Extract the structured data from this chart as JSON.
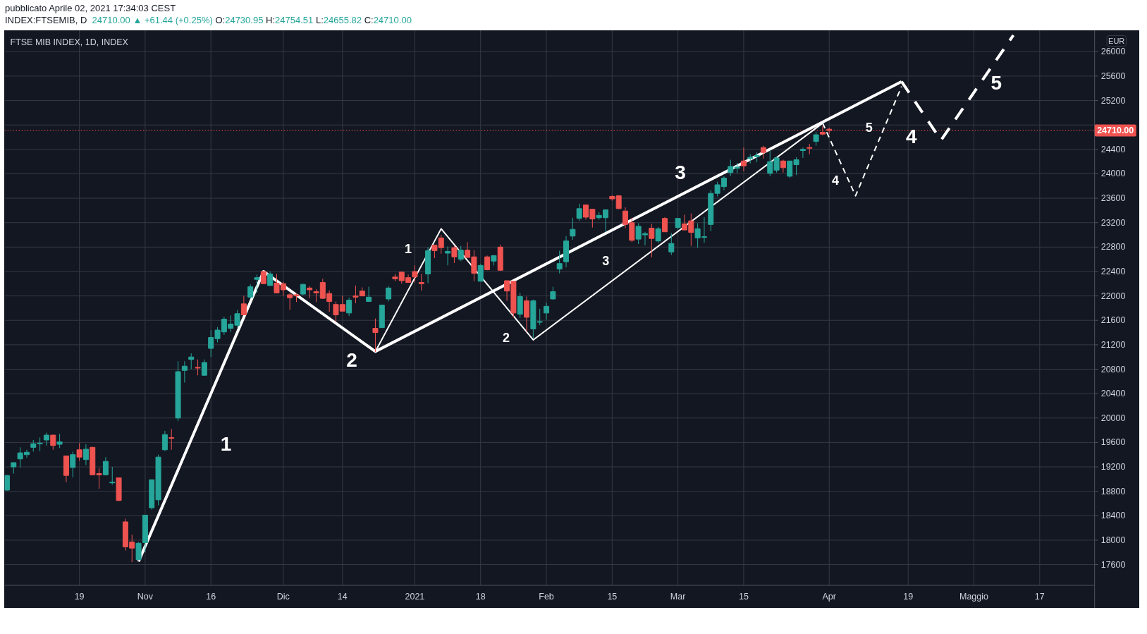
{
  "chart_data": {
    "type": "candlestick",
    "title": "FTSE MIB INDEX, 1D, INDEX",
    "subtitle": "INDEX:FTSEMIB, D  24710.00 ▲ +61.44 (+0.25%) O:24730.95 H:24754.51 L:24655.82 C:24710.00",
    "ylabel": "EUR",
    "annotations": [
      "pubblicato Aprile 02, 2021 17:34:03 CEST",
      "1",
      "2",
      "3",
      "4",
      "5",
      "1",
      "2",
      "3",
      "4",
      "5"
    ],
    "categories": [
      null,
      null,
      null,
      null,
      null,
      null,
      null,
      null,
      null,
      null,
      null,
      "19",
      null,
      null,
      null,
      null,
      null,
      null,
      null,
      null,
      null,
      "Nov",
      null,
      null,
      null,
      null,
      null,
      null,
      null,
      null,
      null,
      "16",
      null,
      null,
      null,
      null,
      null,
      null,
      null,
      null,
      null,
      null,
      "Dic",
      null,
      null,
      null,
      null,
      null,
      null,
      null,
      null,
      "14",
      null,
      null,
      null,
      null,
      null,
      null,
      null,
      null,
      null,
      null,
      "2021",
      null,
      null,
      null,
      null,
      null,
      null,
      null,
      null,
      null,
      "18",
      null,
      null,
      null,
      null,
      null,
      null,
      null,
      null,
      null,
      "Feb",
      null,
      null,
      null,
      null,
      null,
      null,
      null,
      null,
      null,
      "15",
      null,
      null,
      null,
      null,
      null,
      null,
      null,
      null,
      null,
      "Mar",
      null,
      null,
      null,
      null,
      null,
      null,
      null,
      null,
      null,
      "15",
      null,
      null,
      null,
      null,
      null,
      null,
      null,
      null,
      null,
      null,
      null,
      null,
      "Apr",
      null,
      null,
      null,
      null,
      null,
      null,
      null,
      null,
      null,
      null,
      null,
      "19",
      null,
      null,
      null,
      null,
      null,
      null,
      null,
      null,
      null,
      "Maggio",
      null,
      null,
      null,
      null,
      null,
      null,
      null,
      null,
      null,
      "17",
      null,
      null,
      null,
      null,
      null,
      null,
      null,
      null
    ],
    "ylim": [
      17260,
      26350
    ],
    "yticks": [
      17600,
      18000,
      18400,
      18800,
      19200,
      19600,
      20000,
      20400,
      20800,
      21200,
      21600,
      22000,
      22400,
      22800,
      23200,
      23600,
      24000,
      24400,
      {
        "value": 24800,
        "label": null
      },
      25200,
      25600,
      26000
    ],
    "grid": true,
    "ref_lines": [
      {
        "axis": "y",
        "value": 24710,
        "label": "24710.00",
        "color": "#ef5350",
        "line_style": "dotted"
      }
    ],
    "series": [
      {
        "ohlc": [
          [
            18820,
            19070,
            18810,
            19060
          ],
          [
            19200,
            19270,
            19090,
            19270
          ],
          [
            19330,
            19520,
            19190,
            19430
          ],
          [
            19400,
            19480,
            19350,
            19440
          ],
          [
            19520,
            19640,
            19450,
            19580
          ],
          [
            19580,
            19680,
            19460,
            19590
          ],
          [
            19640,
            19760,
            19550,
            19720
          ],
          [
            19720,
            19730,
            19480,
            19550
          ],
          [
            19570,
            19740,
            19510,
            19610
          ],
          [
            19380,
            19380,
            18950,
            19060
          ],
          [
            19190,
            19450,
            19030,
            19400
          ],
          [
            19480,
            19590,
            19300,
            19360
          ],
          [
            19320,
            19570,
            19230,
            19490
          ],
          [
            19520,
            19530,
            19070,
            19070
          ],
          [
            19090,
            19180,
            18840,
            19070
          ],
          [
            19070,
            19360,
            19060,
            19290
          ],
          [
            18940,
            19200,
            18910,
            18950
          ],
          [
            19020,
            19020,
            18640,
            18650
          ],
          [
            18300,
            18350,
            17830,
            17890
          ],
          [
            17970,
            18090,
            17640,
            17870
          ],
          [
            17680,
            17970,
            17670,
            17950
          ],
          [
            17960,
            18410,
            17800,
            18410
          ],
          [
            18530,
            18990,
            18500,
            18990
          ],
          [
            18660,
            19400,
            18570,
            19360
          ],
          [
            19480,
            19790,
            19460,
            19730
          ],
          [
            19680,
            19820,
            19480,
            19670
          ],
          [
            20000,
            20930,
            19950,
            20760
          ],
          [
            20780,
            20930,
            20580,
            20850
          ],
          [
            20960,
            21060,
            20800,
            21000
          ],
          [
            20830,
            20960,
            20700,
            20820
          ],
          [
            20700,
            20960,
            20690,
            20910
          ],
          [
            21140,
            21440,
            21000,
            21320
          ],
          [
            21300,
            21490,
            21240,
            21440
          ],
          [
            21410,
            21660,
            21360,
            21620
          ],
          [
            21470,
            21680,
            21410,
            21540
          ],
          [
            21520,
            21770,
            21480,
            21710
          ],
          [
            21870,
            22000,
            21690,
            21690
          ],
          [
            21980,
            22190,
            21960,
            22150
          ],
          [
            22270,
            22350,
            22050,
            22300
          ],
          [
            22400,
            22410,
            22200,
            22200
          ],
          [
            22170,
            22400,
            22170,
            22360
          ],
          [
            22210,
            22360,
            22050,
            22050
          ],
          [
            22200,
            22230,
            22000,
            22100
          ],
          [
            22020,
            22050,
            21770,
            21970
          ],
          [
            22020,
            22040,
            21900,
            22000
          ],
          [
            22030,
            22200,
            22010,
            22190
          ],
          [
            22130,
            22160,
            21960,
            22100
          ],
          [
            22070,
            22110,
            21900,
            22050
          ],
          [
            22220,
            22280,
            21950,
            21960
          ],
          [
            22040,
            22090,
            21740,
            21910
          ],
          [
            21860,
            21910,
            21570,
            21690
          ],
          [
            21860,
            22000,
            21750,
            21750
          ],
          [
            21720,
            21970,
            21670,
            21930
          ],
          [
            22000,
            22170,
            21880,
            21980
          ],
          [
            22080,
            22140,
            22000,
            22000
          ],
          [
            21910,
            22150,
            21900,
            21980
          ],
          [
            21470,
            21630,
            21080,
            21400
          ],
          [
            21480,
            21850,
            21480,
            21850
          ],
          [
            21950,
            22160,
            21910,
            22130
          ],
          [
            22310,
            22360,
            22240,
            22280
          ],
          [
            22390,
            22390,
            22200,
            22250
          ],
          [
            22300,
            22350,
            22220,
            22220
          ],
          [
            22400,
            22500,
            22220,
            22310
          ],
          [
            22220,
            22360,
            22090,
            22200
          ],
          [
            22360,
            22800,
            22210,
            22740
          ],
          [
            22830,
            22830,
            22620,
            22740
          ],
          [
            22950,
            23000,
            22690,
            22790
          ],
          [
            22700,
            22810,
            22500,
            22730
          ],
          [
            22790,
            22820,
            22540,
            22640
          ],
          [
            22600,
            22820,
            22570,
            22750
          ],
          [
            22750,
            22880,
            22630,
            22630
          ],
          [
            22640,
            22750,
            22240,
            22370
          ],
          [
            22240,
            22520,
            22240,
            22500
          ],
          [
            22640,
            22660,
            22420,
            22430
          ],
          [
            22570,
            22670,
            22500,
            22660
          ],
          [
            22800,
            22840,
            22420,
            22420
          ],
          [
            22250,
            22250,
            21920,
            22080
          ],
          [
            22240,
            22240,
            21650,
            21720
          ],
          [
            21700,
            22050,
            21640,
            21990
          ],
          [
            21920,
            21990,
            21410,
            21650
          ],
          [
            21460,
            21940,
            21310,
            21920
          ],
          [
            21570,
            21790,
            21520,
            21580
          ],
          [
            21720,
            21890,
            21610,
            21830
          ],
          [
            21950,
            22150,
            21940,
            22070
          ],
          [
            22440,
            22740,
            22370,
            22530
          ],
          [
            22560,
            22980,
            22470,
            22900
          ],
          [
            22980,
            23280,
            22920,
            23090
          ],
          [
            23270,
            23510,
            23230,
            23430
          ],
          [
            23490,
            23490,
            23250,
            23290
          ],
          [
            23420,
            23420,
            23120,
            23260
          ],
          [
            23280,
            23370,
            23250,
            23320
          ],
          [
            23280,
            23410,
            23050,
            23410
          ],
          [
            23630,
            23650,
            23560,
            23590
          ],
          [
            23640,
            23650,
            23420,
            23430
          ],
          [
            23390,
            23450,
            23110,
            23170
          ],
          [
            23200,
            23280,
            22880,
            22910
          ],
          [
            22930,
            23190,
            22850,
            23140
          ],
          [
            23000,
            23050,
            22830,
            23020
          ],
          [
            23110,
            23180,
            22630,
            22940
          ],
          [
            22900,
            23130,
            22870,
            23100
          ],
          [
            23270,
            23290,
            23050,
            23050
          ],
          [
            22720,
            23030,
            22670,
            22860
          ],
          [
            23120,
            23270,
            23090,
            23270
          ],
          [
            23180,
            23330,
            23080,
            23080
          ],
          [
            23230,
            23350,
            22820,
            23040
          ],
          [
            22950,
            23190,
            22790,
            23100
          ],
          [
            22960,
            23290,
            22870,
            22970
          ],
          [
            23170,
            23730,
            23060,
            23680
          ],
          [
            23680,
            23870,
            23630,
            23820
          ],
          [
            23790,
            23960,
            23730,
            23930
          ],
          [
            24020,
            24230,
            23960,
            24120
          ],
          [
            24090,
            24180,
            24010,
            24110
          ],
          [
            24210,
            24430,
            24040,
            24130
          ],
          [
            24250,
            24320,
            24170,
            24270
          ],
          [
            24280,
            24350,
            24190,
            24300
          ],
          [
            24430,
            24460,
            24250,
            24350
          ],
          [
            24010,
            24380,
            23960,
            24200
          ],
          [
            24060,
            24280,
            24020,
            24260
          ],
          [
            24210,
            24230,
            24020,
            24100
          ],
          [
            23960,
            24210,
            23930,
            24210
          ],
          [
            24150,
            24270,
            23980,
            24230
          ],
          [
            24380,
            24430,
            24260,
            24400
          ],
          [
            24430,
            24490,
            24320,
            24420
          ],
          [
            24530,
            24690,
            24460,
            24640
          ],
          [
            24680,
            24780,
            24630,
            24650
          ],
          [
            24730.95,
            24754.51,
            24655.82,
            24710
          ],
          null,
          null,
          null,
          null,
          null,
          null,
          null,
          null,
          null,
          null,
          null,
          null,
          null,
          null,
          null,
          null,
          null,
          null,
          null,
          null,
          null,
          null,
          null,
          null,
          null,
          null,
          null,
          null,
          null,
          null,
          null,
          null,
          null,
          null,
          null,
          null,
          null,
          null,
          null,
          null
        ],
        "colors": [
          "#26a69a",
          "#26a69a",
          "#26a69a",
          "#26a69a",
          "#26a69a",
          "#26a69a",
          "#26a69a",
          "#ef5350",
          "#26a69a",
          "#ef5350",
          "#26a69a",
          "#ef5350",
          "#26a69a",
          "#ef5350",
          "#ef5350",
          "#26a69a",
          "#26a69a",
          "#ef5350",
          "#ef5350",
          "#ef5350",
          "#26a69a",
          "#26a69a",
          "#26a69a",
          "#26a69a",
          "#26a69a",
          "#ef5350",
          "#26a69a",
          "#26a69a",
          "#26a69a",
          "#ef5350",
          "#26a69a",
          "#26a69a",
          "#26a69a",
          "#26a69a",
          "#26a69a",
          "#26a69a",
          "#ef5350",
          "#26a69a",
          "#26a69a",
          "#ef5350",
          "#26a69a",
          "#ef5350",
          "#ef5350",
          "#ef5350",
          "#ef5350",
          "#26a69a",
          "#ef5350",
          "#ef5350",
          "#ef5350",
          "#ef5350",
          "#ef5350",
          "#ef5350",
          "#26a69a",
          "#ef5350",
          "#ef5350",
          "#26a69a",
          "#ef5350",
          "#26a69a",
          "#26a69a",
          "#ef5350",
          "#ef5350",
          "#ef5350",
          "#ef5350",
          "#ef5350",
          "#26a69a",
          "#ef5350",
          "#ef5350",
          "#26a69a",
          "#ef5350",
          "#26a69a",
          "#ef5350",
          "#ef5350",
          "#26a69a",
          "#ef5350",
          "#26a69a",
          "#ef5350",
          "#ef5350",
          "#ef5350",
          "#26a69a",
          "#ef5350",
          "#26a69a",
          "#26a69a",
          "#26a69a",
          "#26a69a",
          "#26a69a",
          "#26a69a",
          "#26a69a",
          "#26a69a",
          "#ef5350",
          "#ef5350",
          "#26a69a",
          "#26a69a",
          "#ef5350",
          "#ef5350",
          "#ef5350",
          "#ef5350",
          "#26a69a",
          "#26a69a",
          "#ef5350",
          "#26a69a",
          "#ef5350",
          "#26a69a",
          "#26a69a",
          "#ef5350",
          "#ef5350",
          "#26a69a",
          "#26a69a",
          "#26a69a",
          "#26a69a",
          "#26a69a",
          "#26a69a",
          "#26a69a",
          "#ef5350",
          "#26a69a",
          "#26a69a",
          "#ef5350",
          "#26a69a",
          "#26a69a",
          "#ef5350",
          "#26a69a",
          "#26a69a",
          "#26a69a",
          "#ef5350",
          "#26a69a",
          "#ef5350",
          "#ef5350",
          null,
          null,
          null,
          null,
          null,
          null,
          null,
          null,
          null,
          null,
          null,
          null,
          null,
          null,
          null,
          null,
          null,
          null,
          null,
          null,
          null,
          null,
          null,
          null,
          null,
          null,
          null,
          null,
          null,
          null,
          null,
          null,
          null,
          null,
          null,
          null,
          null,
          null,
          null,
          null
        ]
      },
      {
        "type": "line",
        "color": "#ffffff",
        "values": [
          null,
          null,
          null,
          null,
          null,
          null,
          null,
          null,
          null,
          null,
          null,
          null,
          null,
          null,
          null,
          null,
          null,
          null,
          null,
          null,
          17650,
          null,
          null,
          null,
          null,
          null,
          null,
          null,
          null,
          null,
          null,
          null,
          null,
          null,
          null,
          null,
          null,
          null,
          null,
          22400,
          null,
          null,
          null,
          null,
          null,
          null,
          null,
          null,
          null,
          null,
          null,
          null,
          null,
          null,
          null,
          null,
          21090,
          null,
          null,
          null,
          null,
          null,
          null,
          null,
          null,
          null,
          null,
          null,
          null,
          null,
          null,
          null,
          null,
          null,
          null,
          null,
          null,
          null,
          null,
          null,
          null,
          null,
          null,
          null,
          null,
          null,
          null,
          null,
          null,
          null,
          null,
          null,
          null,
          null,
          null,
          null,
          null,
          null,
          null,
          null,
          null,
          null,
          null,
          null,
          null,
          null,
          null,
          null,
          null,
          null,
          null,
          null,
          null,
          null,
          null,
          null,
          null,
          null,
          null,
          null,
          null,
          null,
          null,
          null,
          null,
          null,
          null,
          null,
          null,
          null,
          null,
          null,
          null,
          null,
          null,
          null,
          25510,
          null,
          null,
          null,
          null,
          null,
          null,
          null,
          null,
          null,
          null,
          null,
          null,
          null,
          null,
          null,
          null,
          null,
          null,
          null,
          null,
          null,
          null,
          null,
          null,
          null,
          null,
          null,
          null,
          null
        ]
      },
      {
        "type": "line",
        "color": "#ffffff",
        "line_style": "dashed",
        "values": [
          null,
          null,
          null,
          null,
          null,
          null,
          null,
          null,
          null,
          null,
          null,
          null,
          null,
          null,
          null,
          null,
          null,
          null,
          null,
          null,
          null,
          null,
          null,
          null,
          null,
          null,
          null,
          null,
          null,
          null,
          null,
          null,
          null,
          null,
          null,
          null,
          null,
          null,
          null,
          null,
          null,
          null,
          null,
          null,
          null,
          null,
          null,
          null,
          null,
          null,
          null,
          null,
          null,
          null,
          null,
          null,
          null,
          null,
          null,
          null,
          null,
          null,
          null,
          null,
          null,
          null,
          null,
          null,
          null,
          null,
          null,
          null,
          null,
          null,
          null,
          null,
          null,
          null,
          null,
          null,
          null,
          null,
          null,
          null,
          null,
          null,
          null,
          null,
          null,
          null,
          null,
          null,
          null,
          null,
          null,
          null,
          null,
          null,
          null,
          null,
          null,
          null,
          null,
          null,
          null,
          null,
          null,
          null,
          null,
          null,
          null,
          null,
          null,
          null,
          null,
          null,
          null,
          null,
          null,
          null,
          null,
          null,
          null,
          null,
          null,
          null,
          null,
          null,
          null,
          null,
          null,
          null,
          null,
          null,
          null,
          null,
          25510,
          null,
          null,
          null,
          null,
          null,
          24550,
          null,
          null,
          null,
          null,
          null,
          null,
          null,
          null,
          null,
          null,
          26270,
          null,
          null,
          null,
          null,
          null,
          null,
          null,
          null,
          null,
          null,
          null,
          null
        ]
      },
      {
        "type": "line",
        "color": "#ffffff",
        "values": [
          null,
          null,
          null,
          null,
          null,
          null,
          null,
          null,
          null,
          null,
          null,
          null,
          null,
          null,
          null,
          null,
          null,
          null,
          null,
          null,
          null,
          null,
          null,
          null,
          null,
          null,
          null,
          null,
          null,
          null,
          null,
          null,
          null,
          null,
          null,
          null,
          null,
          null,
          null,
          null,
          null,
          null,
          null,
          null,
          null,
          null,
          null,
          null,
          null,
          null,
          null,
          null,
          null,
          null,
          null,
          null,
          21090,
          null,
          null,
          null,
          null,
          null,
          null,
          null,
          null,
          null,
          23100,
          null,
          null,
          null,
          null,
          null,
          null,
          null,
          null,
          null,
          null,
          null,
          null,
          null,
          21280,
          null,
          null,
          null,
          null,
          null,
          null,
          null,
          null,
          null,
          null,
          null,
          null,
          null,
          null,
          null,
          null,
          null,
          null,
          null,
          null,
          null,
          null,
          null,
          null,
          null,
          null,
          null,
          null,
          null,
          null,
          null,
          null,
          null,
          null,
          null,
          null,
          null,
          null,
          null,
          null,
          null,
          null,
          null,
          24830,
          null,
          null,
          null,
          null,
          null,
          null,
          null,
          null,
          null,
          null,
          null,
          null,
          null,
          null,
          null,
          null,
          null,
          null,
          null,
          null,
          null,
          null,
          null,
          null,
          null,
          null,
          null,
          null,
          null,
          null,
          null,
          null,
          null,
          null,
          null,
          null,
          null,
          null,
          null,
          null,
          null
        ]
      },
      {
        "type": "line",
        "color": "#ffffff",
        "line_style": "dashed",
        "values": [
          null,
          null,
          null,
          null,
          null,
          null,
          null,
          null,
          null,
          null,
          null,
          null,
          null,
          null,
          null,
          null,
          null,
          null,
          null,
          null,
          null,
          null,
          null,
          null,
          null,
          null,
          null,
          null,
          null,
          null,
          null,
          null,
          null,
          null,
          null,
          null,
          null,
          null,
          null,
          null,
          null,
          null,
          null,
          null,
          null,
          null,
          null,
          null,
          null,
          null,
          null,
          null,
          null,
          null,
          null,
          null,
          null,
          null,
          null,
          null,
          null,
          null,
          null,
          null,
          null,
          null,
          null,
          null,
          null,
          null,
          null,
          null,
          null,
          null,
          null,
          null,
          null,
          null,
          null,
          null,
          null,
          null,
          null,
          null,
          null,
          null,
          null,
          null,
          null,
          null,
          null,
          null,
          null,
          null,
          null,
          null,
          null,
          null,
          null,
          null,
          null,
          null,
          null,
          null,
          null,
          null,
          null,
          null,
          null,
          null,
          null,
          null,
          null,
          null,
          null,
          null,
          null,
          null,
          null,
          null,
          null,
          null,
          null,
          null,
          24830,
          null,
          null,
          null,
          null,
          23640,
          null,
          null,
          null,
          null,
          null,
          null,
          25430,
          null,
          null,
          null,
          null,
          null,
          null,
          null,
          null,
          null,
          null,
          null,
          null,
          null,
          null,
          null,
          null,
          null,
          null,
          null,
          null,
          null,
          null,
          null,
          null,
          null,
          null,
          null,
          null,
          null
        ]
      }
    ]
  }
}
